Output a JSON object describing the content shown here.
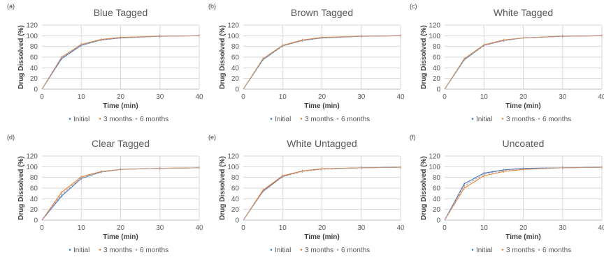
{
  "colors": {
    "initial": "#4472c4",
    "three_months": "#ed7d31",
    "six_months": "#a5a5a5"
  },
  "legend": [
    "Initial",
    "3 months",
    "6 months"
  ],
  "chart_data": [
    {
      "panel": "(a)",
      "type": "line",
      "title": "Blue Tagged",
      "xlabel": "Time (min)",
      "ylabel": "Drug Dissolved (%)",
      "xlim": [
        0,
        40
      ],
      "ylim": [
        0,
        120
      ],
      "xticks": [
        0,
        10,
        20,
        30,
        40
      ],
      "yticks": [
        0,
        20,
        40,
        60,
        80,
        100,
        120
      ],
      "x": [
        0,
        5,
        10,
        15,
        20,
        30,
        40
      ],
      "series": [
        {
          "name": "Initial",
          "values": [
            0,
            57,
            82,
            92,
            96,
            99,
            100
          ]
        },
        {
          "name": "3 months",
          "values": [
            0,
            60,
            84,
            93,
            97,
            99,
            100
          ]
        },
        {
          "name": "6 months",
          "values": [
            0,
            59,
            83,
            92,
            96,
            99,
            100
          ]
        }
      ]
    },
    {
      "panel": "(b)",
      "type": "line",
      "title": "Brown Tagged",
      "xlabel": "Time (min)",
      "ylabel": "Drug Dissolved (%)",
      "xlim": [
        0,
        40
      ],
      "ylim": [
        0,
        120
      ],
      "xticks": [
        0,
        10,
        20,
        30,
        40
      ],
      "yticks": [
        0,
        20,
        40,
        60,
        80,
        100,
        120
      ],
      "x": [
        0,
        5,
        10,
        15,
        20,
        30,
        40
      ],
      "series": [
        {
          "name": "Initial",
          "values": [
            0,
            55,
            81,
            91,
            96,
            99,
            100
          ]
        },
        {
          "name": "3 months",
          "values": [
            0,
            57,
            82,
            92,
            97,
            99,
            100
          ]
        },
        {
          "name": "6 months",
          "values": [
            0,
            56,
            81,
            91,
            96,
            99,
            100
          ]
        }
      ]
    },
    {
      "panel": "(c)",
      "type": "line",
      "title": "White Tagged",
      "xlabel": "Time (min)",
      "ylabel": "Drug Dissolved (%)",
      "xlim": [
        0,
        40
      ],
      "ylim": [
        0,
        120
      ],
      "xticks": [
        0,
        10,
        20,
        30,
        40
      ],
      "yticks": [
        0,
        20,
        40,
        60,
        80,
        100,
        120
      ],
      "x": [
        0,
        5,
        10,
        15,
        20,
        30,
        40
      ],
      "series": [
        {
          "name": "Initial",
          "values": [
            0,
            55,
            82,
            91,
            96,
            99,
            100
          ]
        },
        {
          "name": "3 months",
          "values": [
            0,
            57,
            83,
            92,
            96,
            99,
            100
          ]
        },
        {
          "name": "6 months",
          "values": [
            0,
            56,
            82,
            91,
            96,
            99,
            100
          ]
        }
      ]
    },
    {
      "panel": "(d)",
      "type": "line",
      "title": "Clear Tagged",
      "xlabel": "Time (min)",
      "ylabel": "Drug Dissolved (%)",
      "xlim": [
        0,
        40
      ],
      "ylim": [
        0,
        120
      ],
      "xticks": [
        0,
        10,
        20,
        30,
        40
      ],
      "yticks": [
        0,
        20,
        40,
        60,
        80,
        100,
        120
      ],
      "x": [
        0,
        5,
        10,
        15,
        20,
        30,
        40
      ],
      "series": [
        {
          "name": "Initial",
          "values": [
            0,
            45,
            78,
            90,
            95,
            97,
            98
          ]
        },
        {
          "name": "3 months",
          "values": [
            0,
            52,
            81,
            91,
            95,
            97,
            98
          ]
        },
        {
          "name": "6 months",
          "values": [
            0,
            48,
            79,
            90,
            95,
            97,
            98
          ]
        }
      ]
    },
    {
      "panel": "(e)",
      "type": "line",
      "title": "White Untagged",
      "xlabel": "Time (min)",
      "ylabel": "Drug Dissolved (%)",
      "xlim": [
        0,
        40
      ],
      "ylim": [
        0,
        120
      ],
      "xticks": [
        0,
        10,
        20,
        30,
        40
      ],
      "yticks": [
        0,
        20,
        40,
        60,
        80,
        100,
        120
      ],
      "x": [
        0,
        5,
        10,
        15,
        20,
        30,
        40
      ],
      "series": [
        {
          "name": "Initial",
          "values": [
            0,
            54,
            82,
            92,
            96,
            98,
            99
          ]
        },
        {
          "name": "3 months",
          "values": [
            0,
            56,
            83,
            92,
            96,
            98,
            99
          ]
        },
        {
          "name": "6 months",
          "values": [
            0,
            53,
            81,
            91,
            95,
            98,
            99
          ]
        }
      ]
    },
    {
      "panel": "(f)",
      "type": "line",
      "title": "Uncoated",
      "xlabel": "Time (min)",
      "ylabel": "Drug Dissolved (%)",
      "xlim": [
        0,
        40
      ],
      "ylim": [
        0,
        120
      ],
      "xticks": [
        0,
        10,
        20,
        30,
        40
      ],
      "yticks": [
        0,
        20,
        40,
        60,
        80,
        100,
        120
      ],
      "x": [
        0,
        5,
        10,
        15,
        20,
        30,
        40
      ],
      "series": [
        {
          "name": "Initial",
          "values": [
            0,
            68,
            88,
            94,
            97,
            98,
            99
          ]
        },
        {
          "name": "3 months",
          "values": [
            0,
            60,
            83,
            91,
            95,
            98,
            99
          ]
        },
        {
          "name": "6 months",
          "values": [
            0,
            64,
            86,
            93,
            96,
            98,
            99
          ]
        }
      ]
    }
  ]
}
